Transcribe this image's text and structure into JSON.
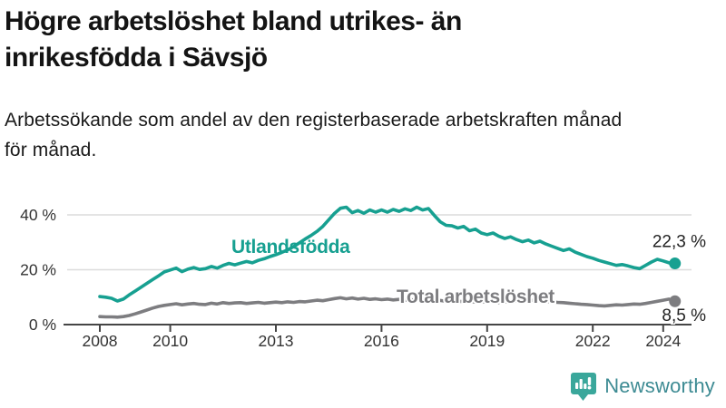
{
  "header": {
    "title_line1": "Högre arbetslöshet bland utrikes- än",
    "title_line2": "inrikesfödda i Sävsjö",
    "subtitle_line1": "Arbetssökande som andel av den registerbaserade arbetskraften månad",
    "subtitle_line2": "för månad."
  },
  "footer": {
    "brand": "Newsworthy",
    "logo_icon": "bar-chart-speech-bubble-icon"
  },
  "colors": {
    "series_foreign": "#17a091",
    "series_total": "#7d7d80",
    "title_text": "#141414",
    "axis_line": "#454545",
    "axis_label": "#333333",
    "gridline": "#dcdcdc",
    "value_label": "#222222",
    "brand_icon": "#3aa79b",
    "brand_text": "#3d8b93"
  },
  "chart_data": {
    "type": "line",
    "title": "Högre arbetslöshet bland utrikes- än inrikesfödda i Sävsjö",
    "subtitle": "Arbetssökande som andel av den registerbaserade arbetskraften månad för månad.",
    "x_unit": "year",
    "x_start_year": 2008,
    "points_per_year": 6,
    "x_tick_years": [
      2008,
      2010,
      2013,
      2016,
      2019,
      2022,
      2024
    ],
    "y_tick_values": [
      0,
      20,
      40
    ],
    "y_tick_labels": [
      "0 %",
      "20 %",
      "40 %"
    ],
    "ylim": [
      0,
      46
    ],
    "grid": "horizontal-only",
    "legend_position": "inline-labels-on-lines",
    "series": [
      {
        "name": "Utlandsfödda",
        "color": "#17a091",
        "end_value": 22.3,
        "end_label": "22,3 %",
        "values": [
          10.2,
          10.0,
          9.6,
          8.6,
          9.3,
          10.8,
          12.2,
          13.6,
          15.0,
          16.4,
          17.8,
          19.2,
          19.9,
          20.6,
          19.3,
          20.2,
          20.8,
          20.1,
          20.4,
          21.2,
          20.6,
          21.6,
          22.3,
          21.8,
          22.4,
          23.0,
          22.5,
          23.4,
          24.0,
          24.8,
          25.5,
          26.3,
          27.2,
          28.4,
          29.8,
          31.2,
          32.5,
          34.0,
          35.8,
          38.2,
          40.6,
          42.4,
          42.8,
          40.8,
          41.6,
          40.6,
          41.8,
          41.0,
          41.8,
          41.0,
          42.0,
          41.3,
          42.2,
          41.6,
          42.8,
          41.8,
          42.3,
          39.8,
          37.5,
          36.2,
          36.0,
          35.2,
          35.8,
          34.2,
          34.8,
          33.4,
          32.8,
          33.4,
          32.2,
          31.4,
          32.0,
          31.0,
          30.2,
          30.8,
          29.8,
          30.4,
          29.4,
          28.6,
          27.8,
          27.0,
          27.6,
          26.4,
          25.6,
          24.8,
          24.2,
          23.4,
          22.8,
          22.2,
          21.6,
          21.9,
          21.4,
          20.8,
          20.4,
          21.6,
          22.8,
          23.8,
          23.2,
          22.5,
          22.3
        ]
      },
      {
        "name": "Total arbetslöshet",
        "color": "#7d7d80",
        "end_value": 8.5,
        "end_label": "8,5 %",
        "values": [
          2.9,
          2.8,
          2.8,
          2.7,
          2.9,
          3.3,
          3.9,
          4.6,
          5.3,
          6.0,
          6.6,
          7.0,
          7.3,
          7.6,
          7.2,
          7.5,
          7.7,
          7.4,
          7.3,
          7.8,
          7.5,
          8.0,
          7.7,
          7.9,
          8.0,
          7.7,
          7.9,
          8.1,
          7.8,
          8.0,
          8.2,
          8.0,
          8.3,
          8.1,
          8.4,
          8.3,
          8.6,
          8.9,
          8.7,
          9.1,
          9.5,
          9.8,
          9.4,
          9.7,
          9.3,
          9.6,
          9.2,
          9.4,
          9.1,
          9.3,
          9.0,
          9.2,
          8.9,
          9.1,
          8.9,
          8.7,
          8.9,
          8.6,
          8.8,
          8.5,
          8.4,
          8.6,
          8.3,
          8.5,
          8.2,
          8.4,
          8.1,
          8.3,
          8.0,
          8.2,
          8.4,
          8.6,
          8.5,
          8.7,
          8.9,
          8.7,
          8.5,
          8.3,
          8.1,
          8.0,
          7.8,
          7.6,
          7.4,
          7.3,
          7.1,
          6.9,
          6.8,
          7.0,
          7.2,
          7.1,
          7.3,
          7.5,
          7.4,
          7.7,
          8.1,
          8.5,
          8.9,
          9.3,
          8.5
        ]
      }
    ]
  }
}
